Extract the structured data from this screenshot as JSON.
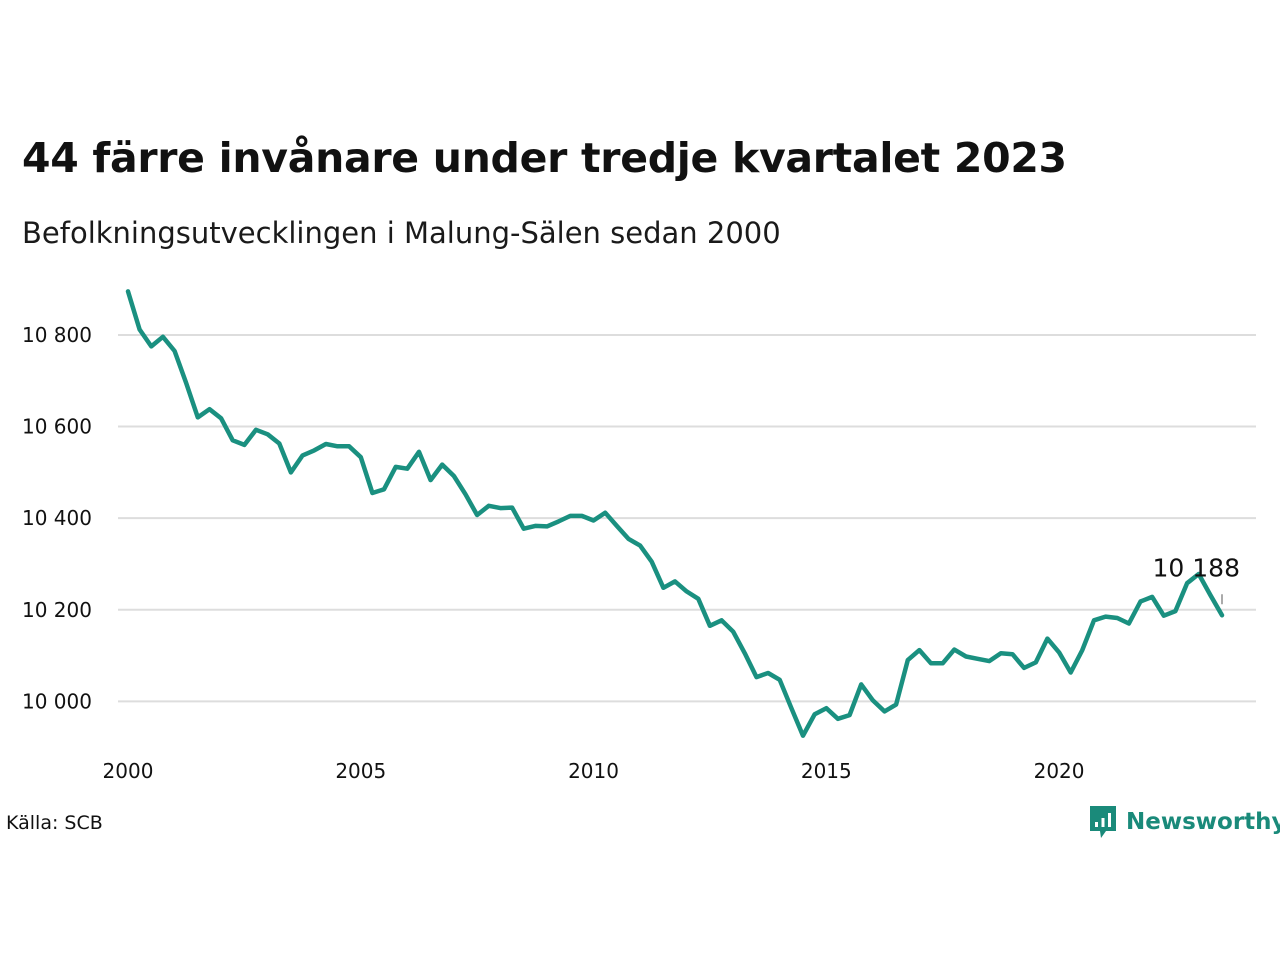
{
  "header": {
    "title": "44 färre invånare under tredje kvartalet 2023",
    "subtitle": "Befolkningsutvecklingen i Malung-Sälen sedan 2000"
  },
  "footer": {
    "source": "Källa: SCB",
    "brand": "Newsworthy"
  },
  "colors": {
    "line": "#1a9080",
    "grid": "#dddddd",
    "brand": "#1a8a7a"
  },
  "chart_data": {
    "type": "line",
    "title": "44 färre invånare under tredje kvartalet 2023",
    "subtitle": "Befolkningsutvecklingen i Malung-Sälen sedan 2000",
    "xlabel": "",
    "ylabel": "",
    "xlim": [
      2000,
      2024.5
    ],
    "ylim": [
      9920,
      10920
    ],
    "x_ticks": [
      2000,
      2005,
      2010,
      2015,
      2020
    ],
    "x_tick_labels": [
      "2000",
      "2005",
      "2010",
      "2015",
      "2020"
    ],
    "y_ticks": [
      10000,
      10200,
      10400,
      10600,
      10800
    ],
    "y_tick_labels": [
      "10 000",
      "10 200",
      "10 400",
      "10 600",
      "10 800"
    ],
    "grid": true,
    "end_label": "10 188",
    "series": [
      {
        "x": [
          2000.0,
          2000.25,
          2000.5,
          2000.75,
          2001.0,
          2001.25,
          2001.5,
          2001.75,
          2002.0,
          2002.25,
          2002.5,
          2002.75,
          2003.0,
          2003.25,
          2003.5,
          2003.75,
          2004.0,
          2004.25,
          2004.5,
          2004.75,
          2005.0,
          2005.25,
          2005.5,
          2005.75,
          2006.0,
          2006.25,
          2006.5,
          2006.75,
          2007.0,
          2007.25,
          2007.5,
          2007.75,
          2008.0,
          2008.25,
          2008.5,
          2008.75,
          2009.0,
          2009.25,
          2009.5,
          2009.75,
          2010.0,
          2010.25,
          2010.5,
          2010.75,
          2011.0,
          2011.25,
          2011.5,
          2011.75,
          2012.0,
          2012.25,
          2012.5,
          2012.75,
          2013.0,
          2013.25,
          2013.5,
          2013.75,
          2014.0,
          2014.25,
          2014.5,
          2014.75,
          2015.0,
          2015.25,
          2015.5,
          2015.75,
          2016.0,
          2016.25,
          2016.5,
          2016.75,
          2017.0,
          2017.25,
          2017.5,
          2017.75,
          2018.0,
          2018.25,
          2018.5,
          2018.75,
          2019.0,
          2019.25,
          2019.5,
          2019.75,
          2020.0,
          2020.25,
          2020.5,
          2020.75,
          2021.0,
          2021.25,
          2021.5,
          2021.75,
          2022.0,
          2022.25,
          2022.5,
          2022.75,
          2023.0,
          2023.25,
          2023.5
        ],
        "values": [
          10895,
          10812,
          10775,
          10796,
          10765,
          10695,
          10620,
          10638,
          10618,
          10570,
          10560,
          10593,
          10583,
          10563,
          10500,
          10537,
          10548,
          10562,
          10557,
          10557,
          10533,
          10455,
          10463,
          10512,
          10508,
          10545,
          10483,
          10517,
          10492,
          10452,
          10407,
          10427,
          10422,
          10423,
          10377,
          10383,
          10382,
          10393,
          10405,
          10405,
          10395,
          10412,
          10383,
          10355,
          10340,
          10305,
          10248,
          10262,
          10240,
          10224,
          10165,
          10177,
          10152,
          10105,
          10053,
          10062,
          10047,
          9985,
          9925,
          9972,
          9985,
          9962,
          9970,
          10037,
          10002,
          9978,
          9993,
          10090,
          10112,
          10083,
          10083,
          10113,
          10098,
          10093,
          10088,
          10105,
          10103,
          10073,
          10085,
          10137,
          10107,
          10063,
          10112,
          10177,
          10185,
          10182,
          10170,
          10218,
          10228,
          10187,
          10197,
          10258,
          10278,
          10232,
          10188
        ]
      }
    ]
  }
}
